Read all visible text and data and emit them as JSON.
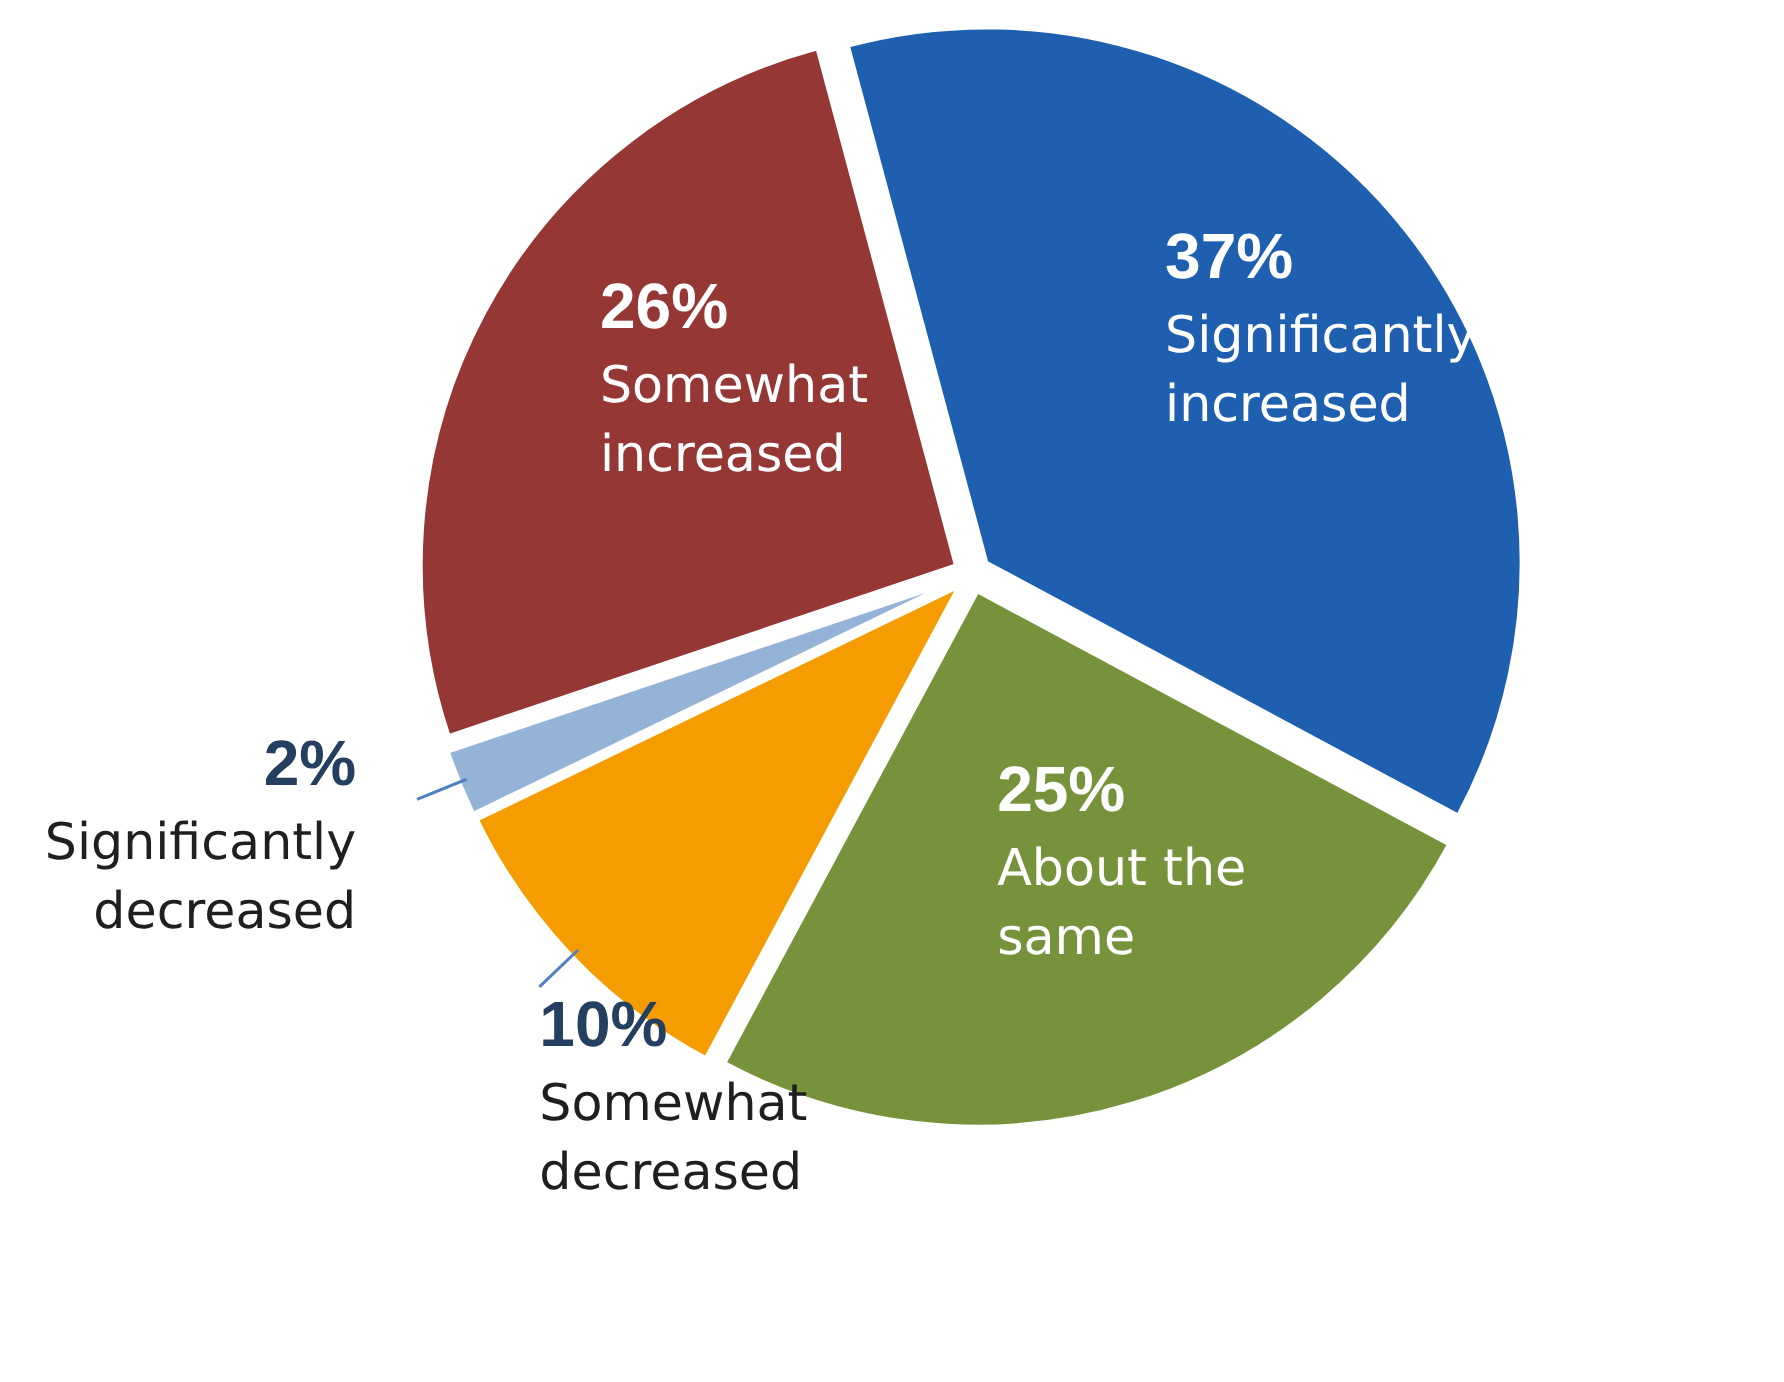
{
  "chart_data": {
    "type": "pie",
    "categories": [
      "Significantly increased",
      "About the same",
      "Somewhat decreased",
      "Significantly decreased",
      "Somewhat increased"
    ],
    "values": [
      37,
      25,
      10,
      2,
      26
    ],
    "colors": [
      "#1f5fb0",
      "#76933c",
      "#f59d00",
      "#95b3d7",
      "#953735"
    ],
    "value_labels": [
      "37%",
      "25%",
      "10%",
      "2%",
      "26%"
    ]
  }
}
